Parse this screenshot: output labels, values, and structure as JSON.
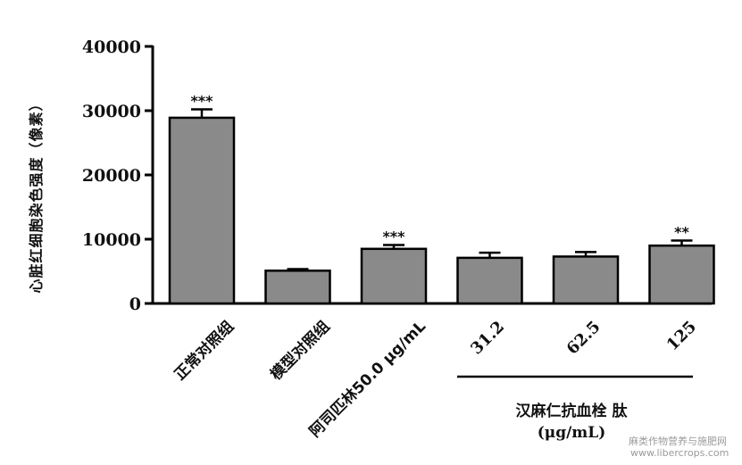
{
  "chart_data": {
    "type": "bar",
    "ylabel": "心脏红细胞染色强度（像素）",
    "ylim": [
      0,
      40000
    ],
    "yticks": [
      0,
      10000,
      20000,
      30000,
      40000
    ],
    "ytick_labels": [
      "0",
      "10000",
      "20000",
      "30000",
      "40000"
    ],
    "categories": [
      "正常对照组",
      "模型对照组",
      "阿司匹林50.0 μg/mL",
      "31.2",
      "62.5",
      "125"
    ],
    "values": [
      28900,
      5100,
      8500,
      7100,
      7300,
      9000
    ],
    "errors": [
      1300,
      250,
      600,
      800,
      700,
      800
    ],
    "significance": [
      "***",
      "",
      "***",
      "",
      "",
      "**"
    ],
    "group_label": {
      "title": "汉麻仁抗血栓 肽",
      "unit": "(μg/mL)",
      "covers": [
        "31.2",
        "62.5",
        "125"
      ]
    },
    "colors": {
      "bar": "#8a8a8a",
      "stroke": "#000000"
    }
  },
  "watermark": {
    "line1": "麻类作物营养与施肥网",
    "line2": "www.libercrops.com"
  }
}
